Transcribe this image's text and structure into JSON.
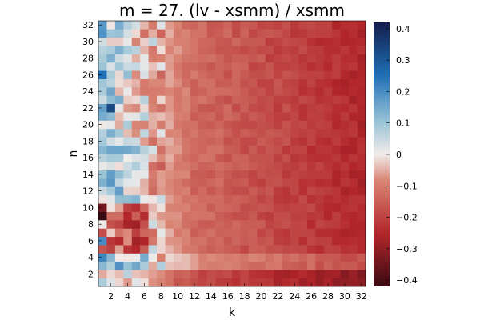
{
  "chart_data": {
    "type": "heatmap",
    "title": "m = 27. (lv - xsmm) / xsmm",
    "xlabel": "k",
    "ylabel": "n",
    "x": {
      "min": 1,
      "max": 32,
      "ticks": [
        2,
        4,
        6,
        8,
        10,
        12,
        14,
        16,
        18,
        20,
        22,
        24,
        26,
        28,
        30,
        32
      ]
    },
    "y": {
      "min": 1,
      "max": 32,
      "ticks": [
        2,
        4,
        6,
        8,
        10,
        12,
        14,
        16,
        18,
        20,
        22,
        24,
        26,
        28,
        30,
        32
      ]
    },
    "colorbar": {
      "min": -0.42,
      "max": 0.42,
      "ticks": [
        -0.4,
        -0.3,
        -0.2,
        -0.1,
        0,
        0.1,
        0.2,
        0.3,
        0.4
      ],
      "tick_labels": [
        "−0.4",
        "−0.3",
        "−0.2",
        "−0.1",
        "0",
        "0.1",
        "0.2",
        "0.3",
        "0.4"
      ],
      "colormap": "balance (dark red → white → dark blue)"
    },
    "grid": false,
    "cell_model": "values z(n,k): ~0.05 to 0.15 for small k (k<=6, n>=10), crossing 0 near k≈8, decreasing to about −0.25 at k=32; darker negative bands near n=1..2 and n=5..10 at small k; lighter band at n=3..4",
    "notable_values": [
      {
        "k": 1,
        "n": 9,
        "z": -0.42
      },
      {
        "k": 1,
        "n": 10,
        "z": -0.34
      },
      {
        "k": 2,
        "n": 22,
        "z": 0.33
      },
      {
        "k": 1,
        "n": 26,
        "z": 0.25
      },
      {
        "k": 1,
        "n": 6,
        "z": 0.2
      },
      {
        "k": 1,
        "n": 32,
        "z": 0.18
      }
    ]
  }
}
